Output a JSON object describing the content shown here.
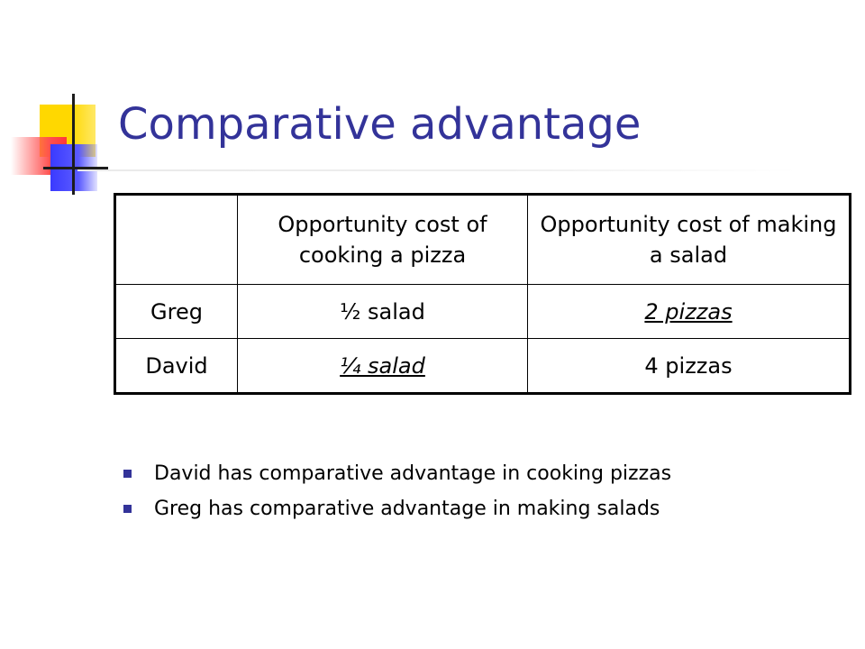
{
  "slide": {
    "title": "Comparative advantage",
    "accent_color": "#333399",
    "table": {
      "header": [
        "",
        "Opportunity cost of cooking a pizza",
        "Opportunity cost of making a salad"
      ],
      "rows": [
        {
          "name": "Greg",
          "pizza_cost": "½ salad",
          "salad_cost": "2 pizzas"
        },
        {
          "name": "David",
          "pizza_cost": "¼ salad",
          "salad_cost": "4 pizzas"
        }
      ]
    },
    "bullets": [
      "David has comparative advantage in cooking pizzas",
      "Greg has comparative advantage in making salads"
    ]
  }
}
